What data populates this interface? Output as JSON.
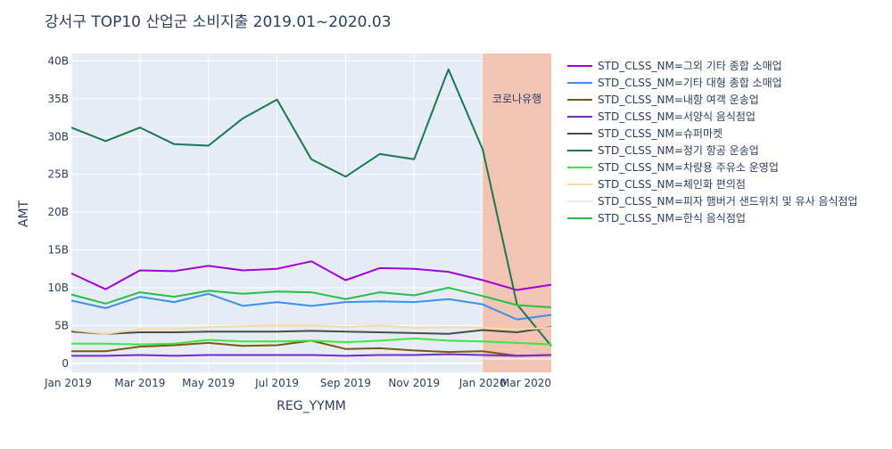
{
  "chart_data": {
    "type": "line",
    "title": "강서구 TOP10 산업군 소비지출 2019.01~2020.03",
    "xlabel": "REG_YYMM",
    "ylabel": "AMT",
    "x": [
      "2019-01",
      "2019-02",
      "2019-03",
      "2019-04",
      "2019-05",
      "2019-06",
      "2019-07",
      "2019-08",
      "2019-09",
      "2019-10",
      "2019-11",
      "2019-12",
      "2020-01",
      "2020-02",
      "2020-03"
    ],
    "x_tick_labels": [
      "Jan 2019",
      "Mar 2019",
      "May 2019",
      "Jul 2019",
      "Sep 2019",
      "Nov 2019",
      "Jan 2020",
      "Mar 2020"
    ],
    "y_tick_labels": [
      "0",
      "5B",
      "10B",
      "15B",
      "20B",
      "25B",
      "30B",
      "35B",
      "40B"
    ],
    "y_ticks": [
      0,
      5,
      10,
      15,
      20,
      25,
      30,
      35,
      40
    ],
    "y_unit_note": "values in billions",
    "xlim": [
      "2019-01",
      "2020-03"
    ],
    "ylim": [
      -1.2,
      41
    ],
    "grid": true,
    "legend_position": "right",
    "background_color": "#e5ecf6",
    "highlight_region": {
      "x_start": "2020-01",
      "x_end": "2020-03",
      "label": "코로나유행",
      "color": "#f2c4b3"
    },
    "series": [
      {
        "name": "STD_CLSS_NM=그외 기타 종합 소매업",
        "color": "#a300e0",
        "values": [
          11.9,
          9.8,
          12.3,
          12.2,
          12.9,
          12.3,
          12.5,
          13.5,
          11.0,
          12.6,
          12.5,
          12.1,
          11.0,
          9.7,
          10.4
        ]
      },
      {
        "name": "STD_CLSS_NM=기타 대형 종합 소매업",
        "color": "#3c8ef0",
        "values": [
          8.3,
          7.3,
          8.8,
          8.1,
          9.2,
          7.6,
          8.1,
          7.6,
          8.1,
          8.2,
          8.1,
          8.5,
          7.8,
          5.8,
          6.4
        ]
      },
      {
        "name": "STD_CLSS_NM=내항 여객 운송업",
        "color": "#7a5a12",
        "values": [
          1.6,
          1.6,
          2.2,
          2.4,
          2.7,
          2.3,
          2.4,
          3.0,
          1.9,
          2.0,
          1.7,
          1.5,
          1.6,
          1.0,
          1.1
        ]
      },
      {
        "name": "STD_CLSS_NM=서양식 음식점업",
        "color": "#7a28c8",
        "values": [
          1.0,
          1.0,
          1.1,
          1.0,
          1.1,
          1.1,
          1.1,
          1.1,
          1.0,
          1.1,
          1.1,
          1.2,
          1.1,
          1.0,
          1.1
        ]
      },
      {
        "name": "STD_CLSS_NM=슈퍼마켓",
        "color": "#4a4a4a",
        "values": [
          4.2,
          3.9,
          4.1,
          4.1,
          4.2,
          4.2,
          4.2,
          4.3,
          4.2,
          4.1,
          4.0,
          3.9,
          4.4,
          4.1,
          4.8
        ]
      },
      {
        "name": "STD_CLSS_NM=정기 항공 운송업",
        "color": "#187a50",
        "values": [
          31.2,
          29.4,
          31.2,
          29.0,
          28.8,
          32.4,
          34.9,
          27.0,
          24.7,
          27.7,
          27.0,
          38.9,
          28.3,
          7.8,
          2.3
        ]
      },
      {
        "name": "STD_CLSS_NM=차량용 주유소 운영업",
        "color": "#3ce83c",
        "values": [
          2.6,
          2.6,
          2.5,
          2.6,
          3.1,
          2.9,
          2.9,
          3.0,
          2.8,
          3.0,
          3.3,
          3.0,
          2.9,
          2.7,
          2.5
        ]
      },
      {
        "name": "STD_CLSS_NM=체인화 편의점",
        "color": "#f7dca0",
        "values": [
          4.4,
          3.9,
          4.5,
          4.5,
          4.8,
          4.9,
          5.0,
          5.0,
          4.8,
          5.0,
          4.7,
          4.8,
          4.7,
          4.5,
          4.7
        ]
      },
      {
        "name": "STD_CLSS_NM=피자 햄버거 샌드위치 및 유사 음식점업",
        "color": "#ececec",
        "values": [
          0.6,
          0.6,
          0.7,
          0.6,
          0.7,
          0.7,
          0.7,
          0.7,
          0.6,
          0.7,
          0.7,
          0.7,
          0.6,
          0.6,
          0.6
        ]
      },
      {
        "name": "STD_CLSS_NM=한식 음식점업",
        "color": "#28be46",
        "values": [
          9.1,
          7.9,
          9.4,
          8.8,
          9.6,
          9.2,
          9.5,
          9.4,
          8.5,
          9.4,
          9.0,
          10.0,
          8.9,
          7.7,
          7.4
        ]
      }
    ]
  }
}
